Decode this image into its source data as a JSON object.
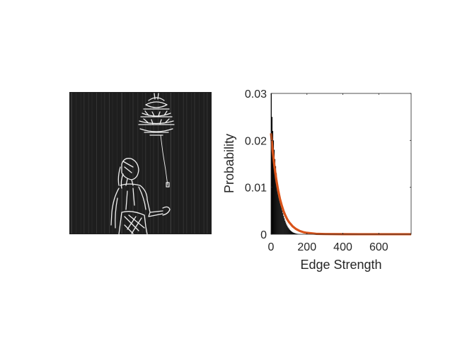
{
  "figure": {
    "background": "#ffffff"
  },
  "image_panel": {
    "subject": "edge-magnitude image: girl looking up at a hanging lamp with a string",
    "background_color": "#1e1e1e",
    "edge_color": "#f0f0f0"
  },
  "chart_data": {
    "type": "histogram",
    "xlabel": "Edge Strength",
    "ylabel": "Probability",
    "xlim": [
      0,
      780
    ],
    "ylim": [
      0,
      0.03
    ],
    "xticks": [
      0,
      200,
      400,
      600
    ],
    "xtick_labels": [
      "0",
      "200",
      "400",
      "600"
    ],
    "yticks": [
      0,
      0.01,
      0.02,
      0.03
    ],
    "ytick_labels": [
      "0",
      "0.01",
      "0.02",
      "0.03"
    ],
    "grid": false,
    "bar_color": "#000000",
    "fit_color": "#d95319",
    "histogram": {
      "bin_width": 4,
      "bins": [
        [
          0,
          0.031
        ],
        [
          4,
          0.025
        ],
        [
          8,
          0.022
        ],
        [
          12,
          0.02
        ],
        [
          16,
          0.018
        ],
        [
          20,
          0.016
        ],
        [
          24,
          0.0145
        ],
        [
          28,
          0.013
        ],
        [
          32,
          0.0115
        ],
        [
          36,
          0.0105
        ],
        [
          40,
          0.0093
        ],
        [
          44,
          0.0083
        ],
        [
          48,
          0.0074
        ],
        [
          52,
          0.0066
        ],
        [
          56,
          0.0058
        ],
        [
          60,
          0.0051
        ],
        [
          64,
          0.0045
        ],
        [
          68,
          0.0039
        ],
        [
          72,
          0.0034
        ],
        [
          76,
          0.0029
        ],
        [
          80,
          0.0025
        ],
        [
          84,
          0.0021
        ],
        [
          88,
          0.0018
        ],
        [
          92,
          0.0015
        ],
        [
          96,
          0.0013
        ],
        [
          100,
          0.0011
        ],
        [
          104,
          0.0009
        ],
        [
          108,
          0.00075
        ],
        [
          112,
          0.00062
        ],
        [
          116,
          0.0005
        ],
        [
          120,
          0.0004
        ],
        [
          124,
          0.00033
        ],
        [
          128,
          0.00027
        ],
        [
          132,
          0.00022
        ],
        [
          136,
          0.00018
        ],
        [
          140,
          0.00014
        ],
        [
          144,
          0.00011
        ],
        [
          148,
          9e-05
        ],
        [
          152,
          7e-05
        ],
        [
          156,
          5e-05
        ]
      ]
    },
    "fit_curve": {
      "x": [
        0,
        10,
        20,
        30,
        40,
        50,
        60,
        70,
        80,
        90,
        100,
        120,
        140,
        160,
        180,
        200,
        250,
        300,
        400,
        500,
        600,
        700,
        780
      ],
      "y": [
        0.0215,
        0.0175,
        0.0142,
        0.0115,
        0.0093,
        0.0075,
        0.0061,
        0.0049,
        0.004,
        0.0032,
        0.0026,
        0.0017,
        0.0011,
        0.0007,
        0.00045,
        0.0003,
        0.0001,
        5e-05,
        2e-05,
        1e-05,
        1e-05,
        1e-05,
        1e-05
      ]
    }
  }
}
